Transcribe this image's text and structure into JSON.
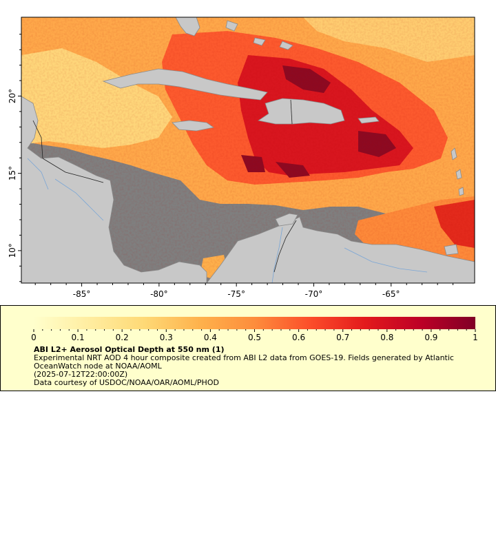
{
  "map": {
    "lon_range": [
      -88.9,
      -59.6
    ],
    "lat_range": [
      7.9,
      25.1
    ],
    "x_ticks": [
      {
        "value": -85,
        "label": "-85°"
      },
      {
        "value": -80,
        "label": "-80°"
      },
      {
        "value": -75,
        "label": "-75°"
      },
      {
        "value": -70,
        "label": "-70°"
      },
      {
        "value": -65,
        "label": "-65°"
      }
    ],
    "y_ticks": [
      {
        "value": 10,
        "label": "10°"
      },
      {
        "value": 15,
        "label": "15°"
      },
      {
        "value": 20,
        "label": "20°"
      }
    ],
    "colors": {
      "ocean_nodata": "#7f7f7f",
      "land": "#c8c8c8",
      "coastline": "#8a8a8a",
      "rivers": "#7aa6d6",
      "borders": "#222222"
    }
  },
  "colorbar": {
    "min": 0,
    "max": 1,
    "ticks": [
      {
        "value": 0,
        "label": "0"
      },
      {
        "value": 0.1,
        "label": "0.1"
      },
      {
        "value": 0.2,
        "label": "0.2"
      },
      {
        "value": 0.3,
        "label": "0.3"
      },
      {
        "value": 0.4,
        "label": "0.4"
      },
      {
        "value": 0.5,
        "label": "0.5"
      },
      {
        "value": 0.6,
        "label": "0.6"
      },
      {
        "value": 0.7,
        "label": "0.7"
      },
      {
        "value": 0.8,
        "label": "0.8"
      },
      {
        "value": 0.9,
        "label": "0.9"
      },
      {
        "value": 1,
        "label": "1"
      }
    ],
    "colormap": "YlOrRd",
    "stops": [
      "#ffffcc",
      "#ffeda0",
      "#fed976",
      "#feb24c",
      "#fd8d3c",
      "#fc4e2a",
      "#e31a1c",
      "#bd0026",
      "#800026"
    ]
  },
  "legend": {
    "title": "ABI L2+ Aerosol Optical Depth at 550 nm (1)",
    "description": "Experimental NRT AOD 4 hour composite created from ABI L2 data from GOES-19. Fields generated by Atlantic OceanWatch node at NOAA/AOML",
    "time": "(2025-07-12T22:00:00Z)",
    "credit": "Data courtesy of USDOC/NOAA/OAR/AOML/PHOD"
  }
}
